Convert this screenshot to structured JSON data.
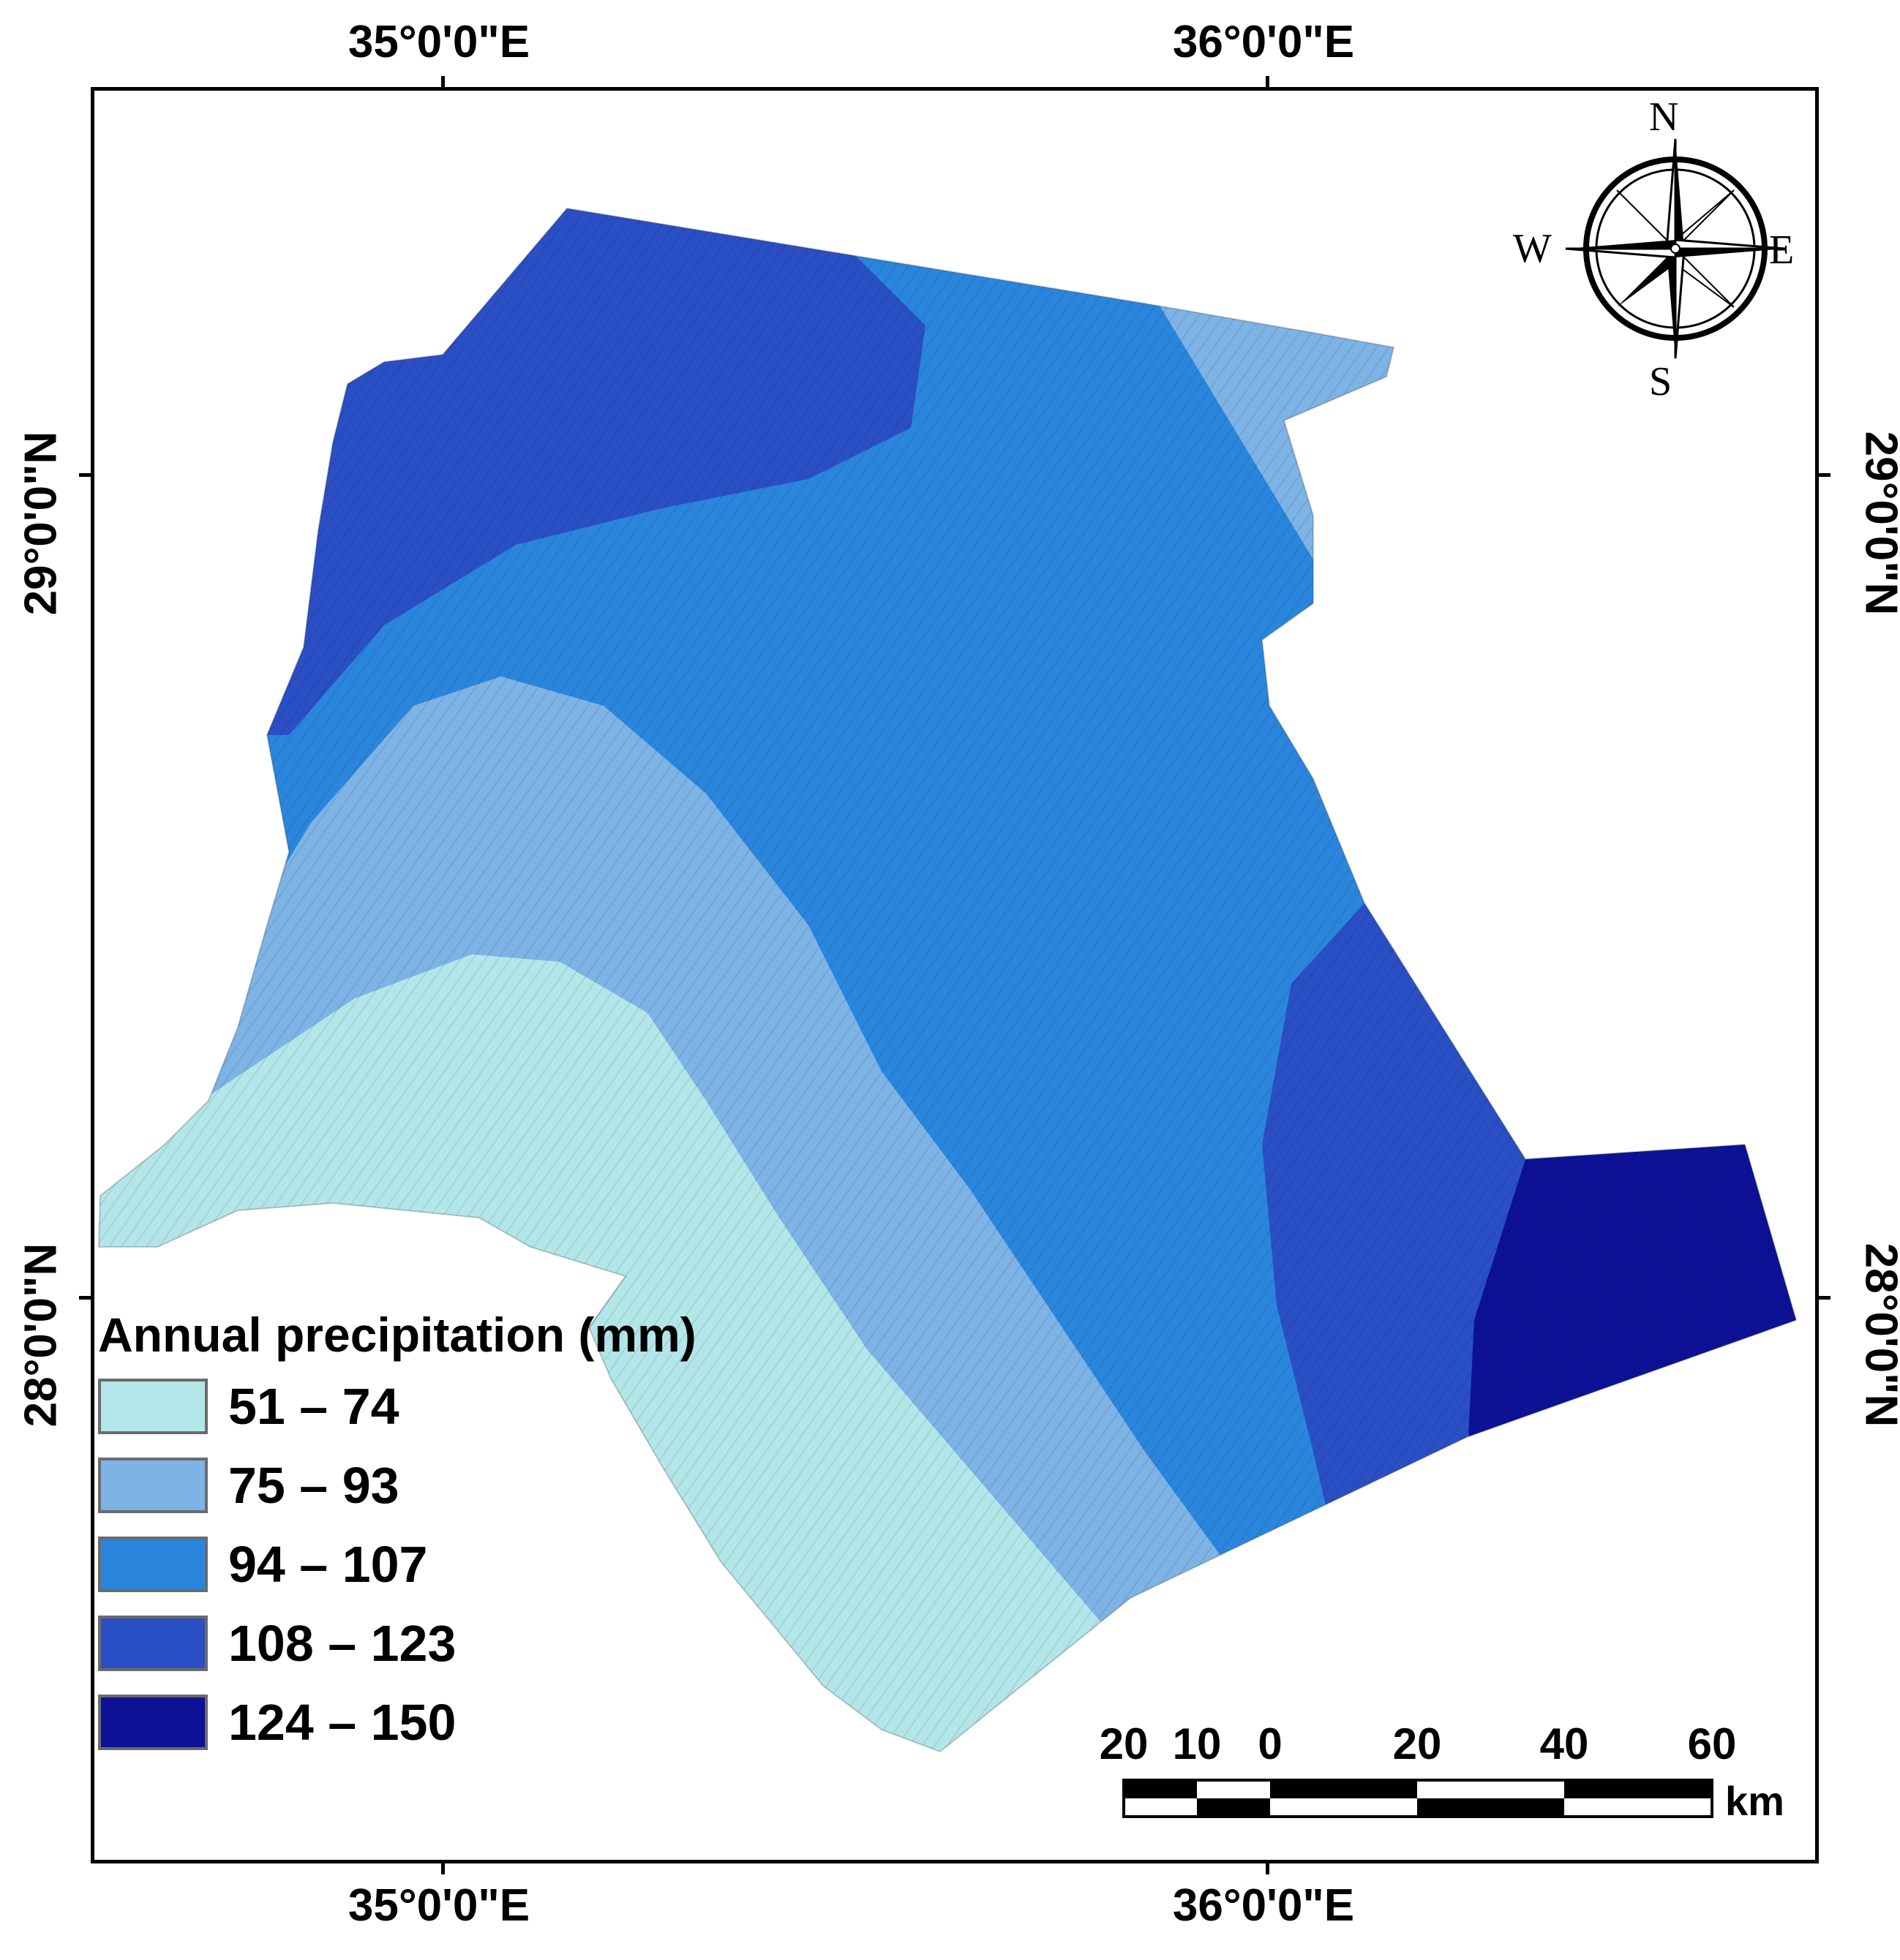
{
  "axes": {
    "lon_labels": [
      "35°0'0\"E",
      "36°0'0\"E"
    ],
    "lat_labels": [
      "29°0'0\"N",
      "28°0'0\"N"
    ]
  },
  "legend": {
    "title": "Annual precipitation (mm)",
    "classes": [
      {
        "label": "51 – 74",
        "color": "#b3e6e8"
      },
      {
        "label": "75 – 93",
        "color": "#7eb3e6"
      },
      {
        "label": "94 – 107",
        "color": "#2a86dc"
      },
      {
        "label": "108 – 123",
        "color": "#2a4fc4"
      },
      {
        "label": "124 – 150",
        "color": "#0c1196"
      }
    ]
  },
  "north_arrow": {
    "n": "N",
    "s": "S",
    "e": "E",
    "w": "W"
  },
  "scale_bar": {
    "labels": [
      "20",
      "10",
      "0",
      "20",
      "40",
      "60"
    ],
    "unit": "km"
  }
}
